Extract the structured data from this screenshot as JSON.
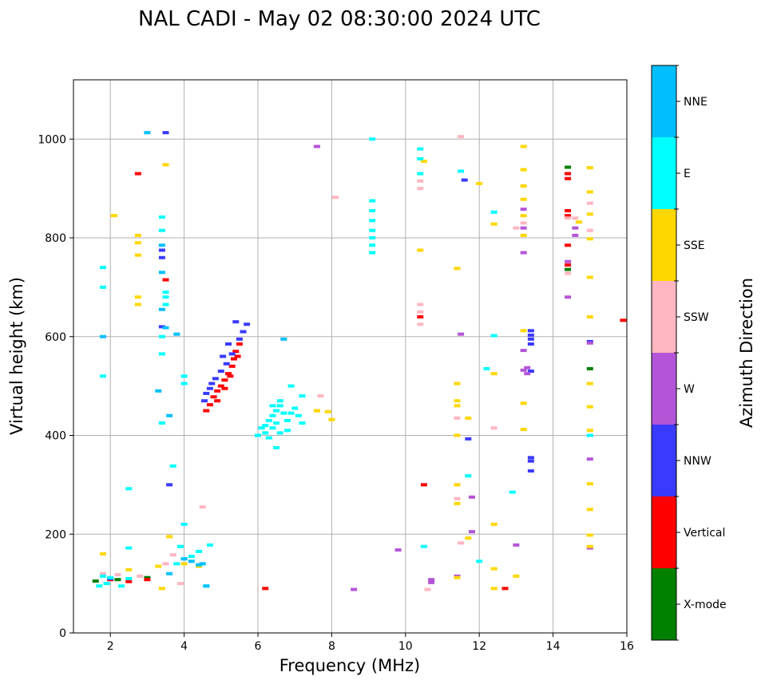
{
  "chart_data": {
    "type": "scatter",
    "title": "NAL CADI - May 02 08:30:00 2024 UTC",
    "xlabel": "Frequency (MHz)",
    "ylabel": "Virtual height (km)",
    "xlim": [
      1.0,
      16.0
    ],
    "ylim": [
      0,
      1120
    ],
    "xticks": [
      2,
      4,
      6,
      8,
      10,
      12,
      14,
      16
    ],
    "yticks": [
      0,
      200,
      400,
      600,
      800,
      1000
    ],
    "grid": true,
    "colorbar": {
      "label": "Azimuth Direction",
      "categories": [
        "X-mode",
        "Vertical",
        "NNW",
        "W",
        "SSW",
        "SSE",
        "E",
        "NNE"
      ],
      "colors": [
        "#008000",
        "#ff0000",
        "#3a3aff",
        "#b455d8",
        "#ffb6c1",
        "#ffd700",
        "#00ffff",
        "#00bfff"
      ]
    },
    "series": [
      {
        "name": "X-mode",
        "points": [
          [
            14.4,
            943
          ],
          [
            14.4,
            736
          ],
          [
            15.0,
            535
          ],
          [
            1.6,
            105
          ],
          [
            2.2,
            108
          ],
          [
            3.0,
            112
          ]
        ]
      },
      {
        "name": "Vertical",
        "points": [
          [
            4.6,
            450
          ],
          [
            4.7,
            462
          ],
          [
            4.8,
            478
          ],
          [
            4.9,
            490
          ],
          [
            5.0,
            500
          ],
          [
            5.1,
            512
          ],
          [
            5.2,
            525
          ],
          [
            5.3,
            540
          ],
          [
            5.35,
            555
          ],
          [
            5.4,
            570
          ],
          [
            5.5,
            585
          ],
          [
            4.9,
            470
          ],
          [
            5.1,
            495
          ],
          [
            5.25,
            520
          ],
          [
            5.45,
            560
          ],
          [
            2.75,
            930
          ],
          [
            3.5,
            715
          ],
          [
            10.5,
            300
          ],
          [
            10.4,
            640
          ],
          [
            14.4,
            930
          ],
          [
            14.4,
            920
          ],
          [
            14.4,
            855
          ],
          [
            14.4,
            845
          ],
          [
            14.4,
            785
          ],
          [
            14.4,
            745
          ],
          [
            15.9,
            633
          ],
          [
            12.7,
            90
          ],
          [
            6.2,
            90
          ],
          [
            2.0,
            108
          ],
          [
            2.5,
            104
          ],
          [
            3.0,
            108
          ]
        ]
      },
      {
        "name": "NNW",
        "points": [
          [
            4.55,
            470
          ],
          [
            4.7,
            495
          ],
          [
            4.85,
            515
          ],
          [
            5.0,
            530
          ],
          [
            5.15,
            545
          ],
          [
            5.3,
            565
          ],
          [
            5.5,
            595
          ],
          [
            5.6,
            610
          ],
          [
            5.7,
            625
          ],
          [
            4.75,
            505
          ],
          [
            5.05,
            560
          ],
          [
            5.4,
            630
          ],
          [
            4.6,
            485
          ],
          [
            5.2,
            585
          ],
          [
            3.4,
            775
          ],
          [
            3.4,
            760
          ],
          [
            3.5,
            1013
          ],
          [
            3.4,
            620
          ],
          [
            3.6,
            300
          ],
          [
            13.4,
            612
          ],
          [
            13.4,
            603
          ],
          [
            13.4,
            595
          ],
          [
            13.4,
            585
          ],
          [
            13.4,
            530
          ],
          [
            13.4,
            355
          ],
          [
            13.4,
            348
          ],
          [
            13.4,
            328
          ],
          [
            11.6,
            917
          ],
          [
            11.7,
            393
          ],
          [
            15.0,
            590
          ],
          [
            2.0,
            110
          ]
        ]
      },
      {
        "name": "W",
        "points": [
          [
            13.2,
            858
          ],
          [
            13.2,
            770
          ],
          [
            13.2,
            572
          ],
          [
            13.2,
            532
          ],
          [
            13.3,
            537
          ],
          [
            13.3,
            525
          ],
          [
            14.6,
            820
          ],
          [
            14.6,
            805
          ],
          [
            14.4,
            752
          ],
          [
            14.4,
            680
          ],
          [
            15.0,
            352
          ],
          [
            15.0,
            172
          ],
          [
            11.8,
            275
          ],
          [
            11.8,
            205
          ],
          [
            11.4,
            115
          ],
          [
            9.8,
            168
          ],
          [
            8.6,
            88
          ],
          [
            10.7,
            108
          ],
          [
            10.7,
            102
          ],
          [
            11.5,
            605
          ],
          [
            7.6,
            985
          ],
          [
            13.0,
            178
          ],
          [
            15.0,
            587
          ],
          [
            13.2,
            820
          ]
        ]
      },
      {
        "name": "SSW",
        "points": [
          [
            10.4,
            665
          ],
          [
            10.4,
            650
          ],
          [
            10.4,
            625
          ],
          [
            10.4,
            900
          ],
          [
            10.4,
            915
          ],
          [
            14.4,
            840
          ],
          [
            14.4,
            728
          ],
          [
            14.6,
            840
          ],
          [
            15.0,
            870
          ],
          [
            15.0,
            815
          ],
          [
            11.5,
            1005
          ],
          [
            11.4,
            435
          ],
          [
            11.4,
            272
          ],
          [
            11.5,
            182
          ],
          [
            12.4,
            415
          ],
          [
            13.2,
            830
          ],
          [
            13.0,
            820
          ],
          [
            8.1,
            882
          ],
          [
            7.7,
            480
          ],
          [
            4.5,
            255
          ],
          [
            3.5,
            140
          ],
          [
            3.9,
            100
          ],
          [
            10.6,
            88
          ],
          [
            1.8,
            120
          ],
          [
            2.2,
            118
          ],
          [
            2.8,
            115
          ],
          [
            3.7,
            158
          ]
        ]
      },
      {
        "name": "SSE",
        "points": [
          [
            2.75,
            805
          ],
          [
            2.75,
            790
          ],
          [
            2.75,
            765
          ],
          [
            2.75,
            680
          ],
          [
            2.75,
            665
          ],
          [
            2.1,
            845
          ],
          [
            3.5,
            948
          ],
          [
            11.4,
            738
          ],
          [
            11.4,
            505
          ],
          [
            11.4,
            470
          ],
          [
            11.4,
            460
          ],
          [
            11.4,
            400
          ],
          [
            11.4,
            300
          ],
          [
            11.4,
            262
          ],
          [
            11.4,
            112
          ],
          [
            11.7,
            435
          ],
          [
            11.7,
            192
          ],
          [
            12.0,
            910
          ],
          [
            12.4,
            828
          ],
          [
            12.4,
            525
          ],
          [
            12.4,
            220
          ],
          [
            12.4,
            130
          ],
          [
            12.4,
            90
          ],
          [
            13.2,
            985
          ],
          [
            13.2,
            938
          ],
          [
            13.2,
            905
          ],
          [
            13.2,
            878
          ],
          [
            13.2,
            845
          ],
          [
            13.2,
            805
          ],
          [
            13.2,
            612
          ],
          [
            13.2,
            465
          ],
          [
            13.2,
            412
          ],
          [
            13.0,
            115
          ],
          [
            10.4,
            775
          ],
          [
            10.5,
            955
          ],
          [
            15.0,
            942
          ],
          [
            15.0,
            893
          ],
          [
            15.0,
            848
          ],
          [
            15.0,
            798
          ],
          [
            15.0,
            720
          ],
          [
            15.0,
            640
          ],
          [
            15.0,
            505
          ],
          [
            15.0,
            458
          ],
          [
            15.0,
            410
          ],
          [
            15.0,
            302
          ],
          [
            15.0,
            250
          ],
          [
            15.0,
            198
          ],
          [
            15.0,
            175
          ],
          [
            14.7,
            832
          ],
          [
            7.9,
            448
          ],
          [
            8.0,
            432
          ],
          [
            7.6,
            450
          ],
          [
            2.5,
            128
          ],
          [
            3.3,
            135
          ],
          [
            4.0,
            140
          ],
          [
            4.4,
            135
          ],
          [
            3.4,
            90
          ],
          [
            1.8,
            160
          ],
          [
            3.6,
            195
          ]
        ]
      },
      {
        "name": "E",
        "points": [
          [
            6.1,
            415
          ],
          [
            6.2,
            420
          ],
          [
            6.3,
            430
          ],
          [
            6.4,
            440
          ],
          [
            6.5,
            450
          ],
          [
            6.6,
            460
          ],
          [
            6.7,
            445
          ],
          [
            6.4,
            415
          ],
          [
            6.5,
            425
          ],
          [
            6.2,
            405
          ],
          [
            6.3,
            395
          ],
          [
            6.6,
            405
          ],
          [
            6.0,
            400
          ],
          [
            6.5,
            375
          ],
          [
            6.8,
            430
          ],
          [
            6.9,
            445
          ],
          [
            7.0,
            455
          ],
          [
            7.1,
            440
          ],
          [
            7.2,
            425
          ],
          [
            6.9,
            500
          ],
          [
            7.2,
            480
          ],
          [
            6.8,
            410
          ],
          [
            6.4,
            460
          ],
          [
            6.6,
            470
          ],
          [
            9.1,
            1000
          ],
          [
            9.1,
            875
          ],
          [
            9.1,
            855
          ],
          [
            9.1,
            835
          ],
          [
            9.1,
            815
          ],
          [
            9.1,
            800
          ],
          [
            9.1,
            785
          ],
          [
            9.1,
            770
          ],
          [
            10.4,
            980
          ],
          [
            10.4,
            960
          ],
          [
            10.4,
            930
          ],
          [
            3.4,
            842
          ],
          [
            3.4,
            815
          ],
          [
            3.5,
            690
          ],
          [
            3.5,
            680
          ],
          [
            3.5,
            665
          ],
          [
            3.4,
            600
          ],
          [
            3.4,
            565
          ],
          [
            3.4,
            425
          ],
          [
            4.0,
            520
          ],
          [
            4.0,
            505
          ],
          [
            3.7,
            338
          ],
          [
            4.0,
            220
          ],
          [
            2.5,
            292
          ],
          [
            1.8,
            740
          ],
          [
            1.8,
            520
          ],
          [
            1.8,
            700
          ],
          [
            12.4,
            852
          ],
          [
            12.4,
            602
          ],
          [
            12.2,
            535
          ],
          [
            12.0,
            145
          ],
          [
            11.7,
            318
          ],
          [
            11.5,
            935
          ],
          [
            12.9,
            285
          ],
          [
            15.0,
            400
          ],
          [
            10.5,
            175
          ],
          [
            3.8,
            140
          ],
          [
            4.0,
            150
          ],
          [
            4.2,
            155
          ],
          [
            4.4,
            165
          ],
          [
            4.7,
            178
          ],
          [
            3.9,
            175
          ],
          [
            4.6,
            95
          ],
          [
            2.5,
            172
          ],
          [
            1.8,
            115
          ],
          [
            2.0,
            112
          ],
          [
            1.7,
            95
          ],
          [
            1.9,
            100
          ],
          [
            2.3,
            95
          ],
          [
            2.5,
            110
          ]
        ]
      },
      {
        "name": "NNE",
        "points": [
          [
            3.0,
            1013
          ],
          [
            3.4,
            785
          ],
          [
            3.4,
            730
          ],
          [
            3.4,
            655
          ],
          [
            3.5,
            618
          ],
          [
            3.6,
            440
          ],
          [
            3.3,
            490
          ],
          [
            3.6,
            120
          ],
          [
            4.0,
            150
          ],
          [
            4.2,
            145
          ],
          [
            4.5,
            140
          ],
          [
            4.4,
            138
          ],
          [
            4.6,
            95
          ],
          [
            1.8,
            600
          ],
          [
            3.8,
            605
          ],
          [
            6.7,
            595
          ]
        ]
      }
    ]
  }
}
